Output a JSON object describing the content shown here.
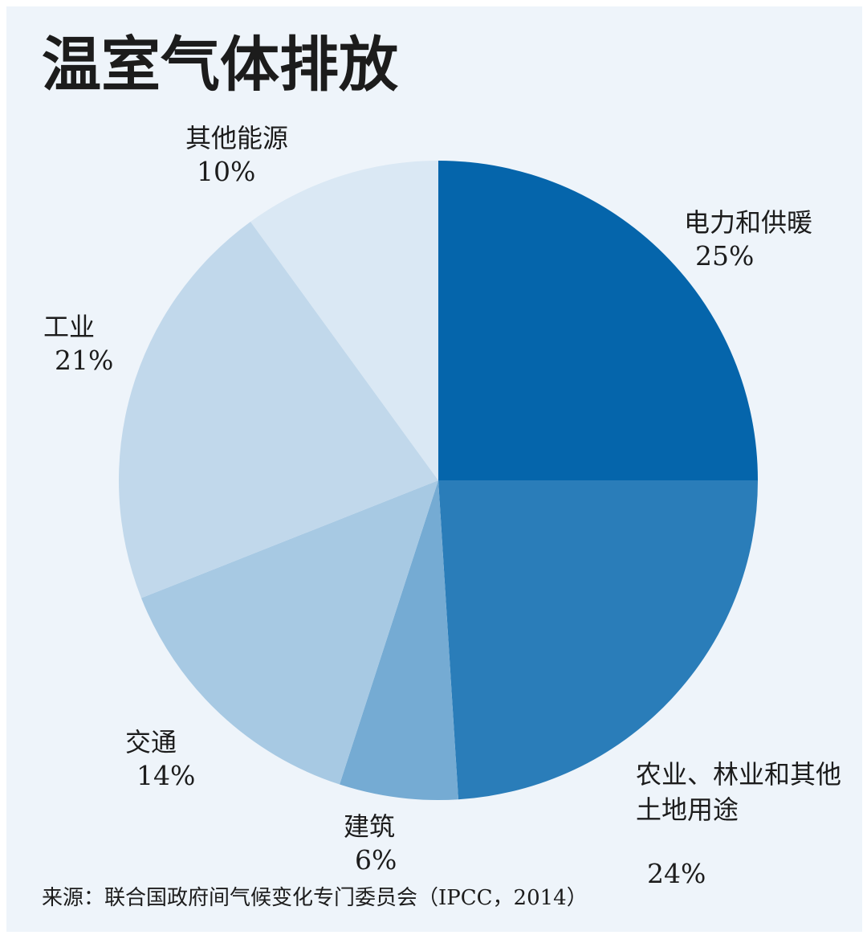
{
  "chart_data": {
    "type": "pie",
    "title": "温室气体排放",
    "slices": [
      {
        "label": "电力和供暖",
        "value": 25,
        "value_label": "25%",
        "color": "#0565ab"
      },
      {
        "label": "农业、林业和其他土地用途",
        "label_lines": [
          "农业、林业和其他",
          "土地用途"
        ],
        "value": 24,
        "value_label": "24%",
        "color": "#2a7db9"
      },
      {
        "label": "建筑",
        "value": 6,
        "value_label": "6%",
        "color": "#75abd3"
      },
      {
        "label": "交通",
        "value": 14,
        "value_label": "14%",
        "color": "#a7c9e3"
      },
      {
        "label": "工业",
        "value": 21,
        "value_label": "21%",
        "color": "#c1d8eb"
      },
      {
        "label": "其他能源",
        "value": 10,
        "value_label": "10%",
        "color": "#dae8f4"
      }
    ],
    "start": "12 o'clock",
    "direction": "clockwise",
    "source": "来源：联合国政府间气候变化专门委员会（IPCC，2014）"
  }
}
